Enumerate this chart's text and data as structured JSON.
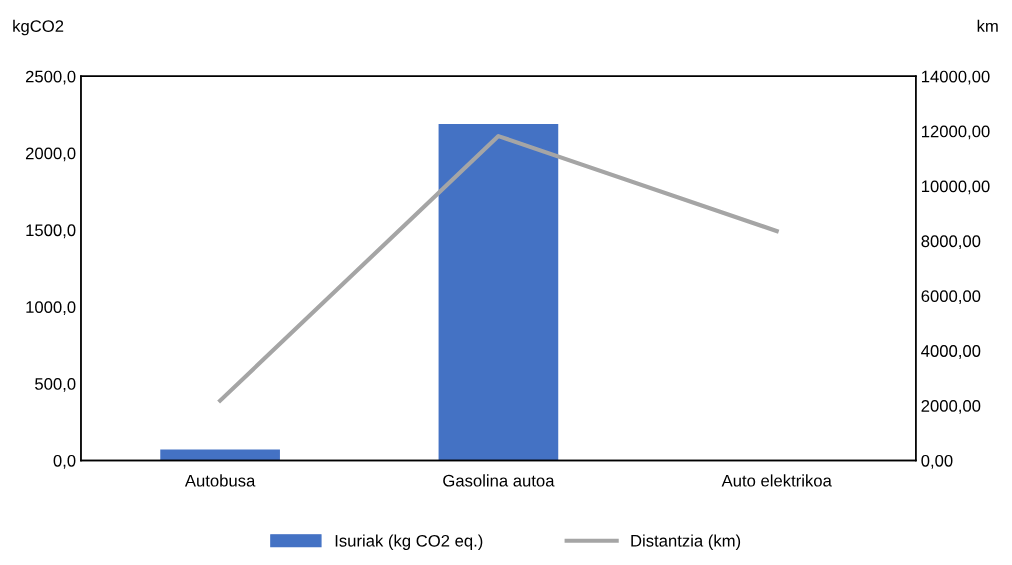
{
  "chart_data": {
    "type": "bar",
    "categories": [
      "Autobusa",
      "Gasolina autoa",
      "Auto elektrikoa"
    ],
    "series": [
      {
        "name": "Isuriak (kg CO2 eq.)",
        "color": "#4472c4",
        "values": [
          71,
          2190,
          0
        ]
      },
      {
        "name": "Distantzia (km)",
        "type": "line",
        "axis": "y2",
        "color": "#a5a5a5",
        "values": [
          2180,
          11820,
          8360
        ]
      }
    ],
    "ylabel": "kgCO2",
    "y2label": "km",
    "ylim": [
      0,
      2500
    ],
    "yticks": [
      {
        "value": 0,
        "label": "0,0"
      },
      {
        "value": 500,
        "label": "500,0"
      },
      {
        "value": 1000,
        "label": "1000,0"
      },
      {
        "value": 1500,
        "label": "1500,0"
      },
      {
        "value": 2000,
        "label": "2000,0"
      },
      {
        "value": 2500,
        "label": "2500,0"
      }
    ],
    "y2lim": [
      0,
      14000
    ],
    "y2ticks": [
      {
        "value": 0,
        "label": "0,00"
      },
      {
        "value": 2000,
        "label": "2000,00"
      },
      {
        "value": 4000,
        "label": "4000,00"
      },
      {
        "value": 6000,
        "label": "6000,00"
      },
      {
        "value": 8000,
        "label": "8000,00"
      },
      {
        "value": 10000,
        "label": "10000,00"
      },
      {
        "value": 12000,
        "label": "12000,00"
      },
      {
        "value": 14000,
        "label": "14000,00"
      }
    ],
    "legend": "bottom",
    "grid": false,
    "marker": "none",
    "line_style": "solid"
  }
}
